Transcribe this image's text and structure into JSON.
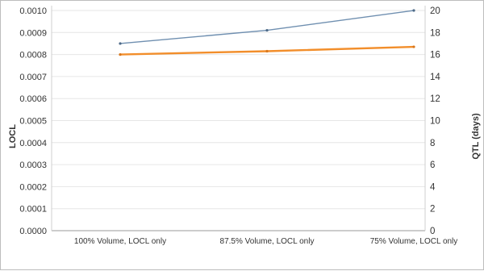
{
  "chart_data": {
    "type": "line",
    "categories": [
      "100% Volume, LOCL only",
      "87.5% Volume, LOCL only",
      "75% Volume, LOCL only"
    ],
    "left_axis": {
      "label": "LOCL",
      "ylim": [
        0,
        0.001
      ],
      "ticks": [
        "0.0000",
        "0.0001",
        "0.0002",
        "0.0003",
        "0.0004",
        "0.0005",
        "0.0006",
        "0.0007",
        "0.0008",
        "0.0009",
        "0.0010"
      ]
    },
    "right_axis": {
      "label": "QTL (days)",
      "ylim": [
        0,
        20
      ],
      "ticks": [
        "0",
        "2",
        "4",
        "6",
        "8",
        "10",
        "12",
        "14",
        "16",
        "18",
        "20"
      ]
    },
    "series": [
      {
        "axis": "left",
        "color": "#6f8fb0",
        "values": [
          0.00085,
          0.00091,
          0.001
        ]
      },
      {
        "axis": "right",
        "color": "#f28e2b",
        "values": [
          16.0,
          16.3,
          16.7
        ]
      }
    ],
    "grid": "horizontal"
  }
}
